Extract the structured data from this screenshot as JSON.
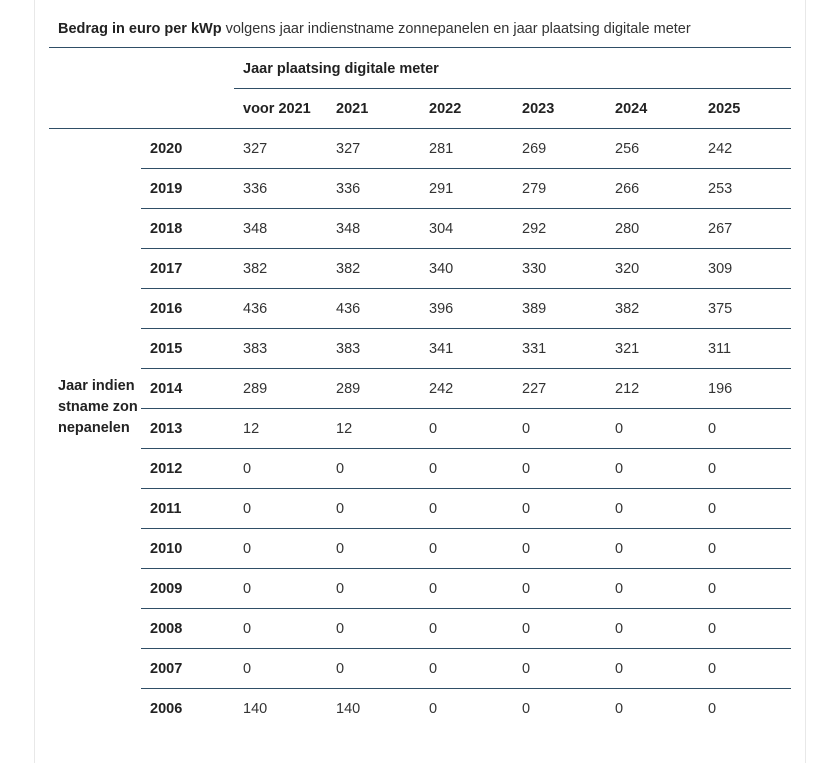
{
  "caption": {
    "bold": "Bedrag in euro per kWp",
    "rest": " volgens jaar indienstname zonnepanelen en jaar plaatsing digitale meter"
  },
  "group_header": "Jaar plaatsing digitale meter",
  "row_header_label": "Jaar indienstname zonnepanelen",
  "columns": [
    "voor 2021",
    "2021",
    "2022",
    "2023",
    "2024",
    "2025"
  ],
  "rows": [
    {
      "year": "2020",
      "values": [
        "327",
        "327",
        "281",
        "269",
        "256",
        "242"
      ]
    },
    {
      "year": "2019",
      "values": [
        "336",
        "336",
        "291",
        "279",
        "266",
        "253"
      ]
    },
    {
      "year": "2018",
      "values": [
        "348",
        "348",
        "304",
        "292",
        "280",
        "267"
      ]
    },
    {
      "year": "2017",
      "values": [
        "382",
        "382",
        "340",
        "330",
        "320",
        "309"
      ]
    },
    {
      "year": "2016",
      "values": [
        "436",
        "436",
        "396",
        "389",
        "382",
        "375"
      ]
    },
    {
      "year": "2015",
      "values": [
        "383",
        "383",
        "341",
        "331",
        "321",
        "311"
      ]
    },
    {
      "year": "2014",
      "values": [
        "289",
        "289",
        "242",
        "227",
        "212",
        "196"
      ]
    },
    {
      "year": "2013",
      "values": [
        "12",
        "12",
        "0",
        "0",
        "0",
        "0"
      ]
    },
    {
      "year": "2012",
      "values": [
        "0",
        "0",
        "0",
        "0",
        "0",
        "0"
      ]
    },
    {
      "year": "2011",
      "values": [
        "0",
        "0",
        "0",
        "0",
        "0",
        "0"
      ]
    },
    {
      "year": "2010",
      "values": [
        "0",
        "0",
        "0",
        "0",
        "0",
        "0"
      ]
    },
    {
      "year": "2009",
      "values": [
        "0",
        "0",
        "0",
        "0",
        "0",
        "0"
      ]
    },
    {
      "year": "2008",
      "values": [
        "0",
        "0",
        "0",
        "0",
        "0",
        "0"
      ]
    },
    {
      "year": "2007",
      "values": [
        "0",
        "0",
        "0",
        "0",
        "0",
        "0"
      ]
    },
    {
      "year": "2006",
      "values": [
        "140",
        "140",
        "0",
        "0",
        "0",
        "0"
      ]
    }
  ]
}
